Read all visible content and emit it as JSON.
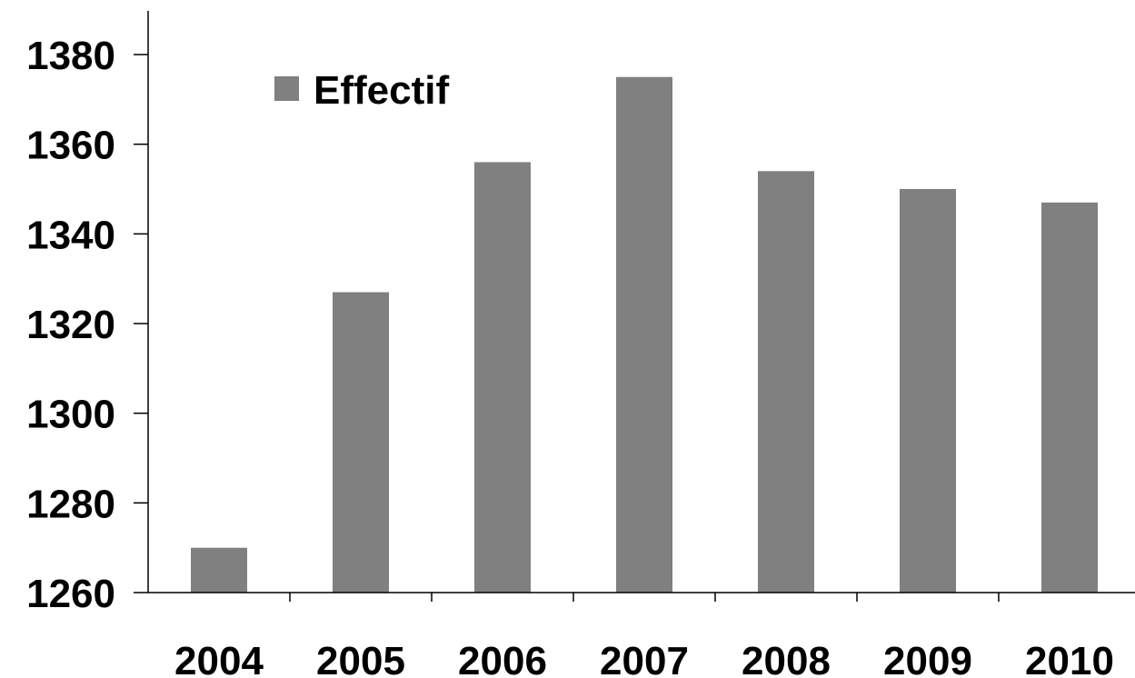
{
  "chart_data": {
    "type": "bar",
    "categories": [
      "2004",
      "2005",
      "2006",
      "2007",
      "2008",
      "2009",
      "2010"
    ],
    "series": [
      {
        "name": "Effectif",
        "values": [
          1270,
          1327,
          1356,
          1375,
          1354,
          1350,
          1347
        ]
      }
    ],
    "ylim": [
      1260,
      1380
    ],
    "yticks": [
      1260,
      1280,
      1300,
      1320,
      1340,
      1360,
      1380
    ],
    "grid": false,
    "legend_position": "top-left",
    "colors": {
      "bar": "#808080",
      "axis": "#000000",
      "text": "#000000"
    }
  }
}
